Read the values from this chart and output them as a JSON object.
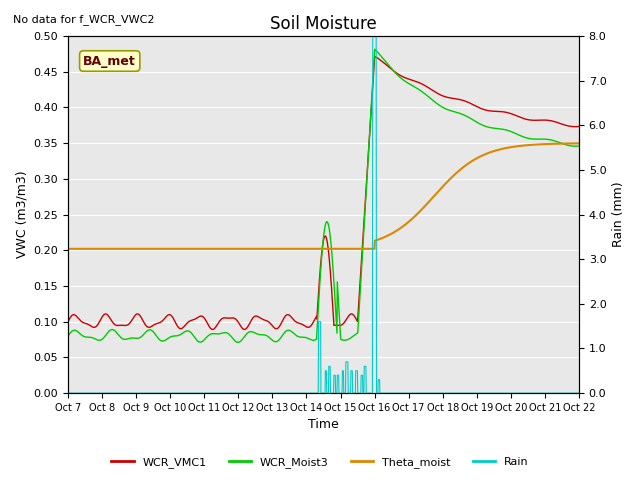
{
  "title": "Soil Moisture",
  "annotation": "No data for f_WCR_VWC2",
  "box_label": "BA_met",
  "ylabel_left": "VWC (m3/m3)",
  "ylabel_right": "Rain (mm)",
  "xlabel": "Time",
  "ylim_left": [
    0.0,
    0.5
  ],
  "ylim_right": [
    0.0,
    8.0
  ],
  "x_ticks": [
    "Oct 7",
    "Oct 8",
    "Oct 9",
    "Oct 10",
    "Oct 11",
    "Oct 12",
    "Oct 13",
    "Oct 14",
    "Oct 15",
    "Oct 16",
    "Oct 17",
    "Oct 18",
    "Oct 19",
    "Oct 20",
    "Oct 21",
    "Oct 22"
  ],
  "colors": {
    "WCR_VMC1": "#cc0000",
    "WCR_Moist3": "#00cc00",
    "Theta_moist": "#dd8800",
    "Rain": "#00cccc",
    "background": "#e8e8e8",
    "grid": "#ffffff"
  },
  "legend": [
    "WCR_VMC1",
    "WCR_Moist3",
    "Theta_moist",
    "Rain"
  ]
}
